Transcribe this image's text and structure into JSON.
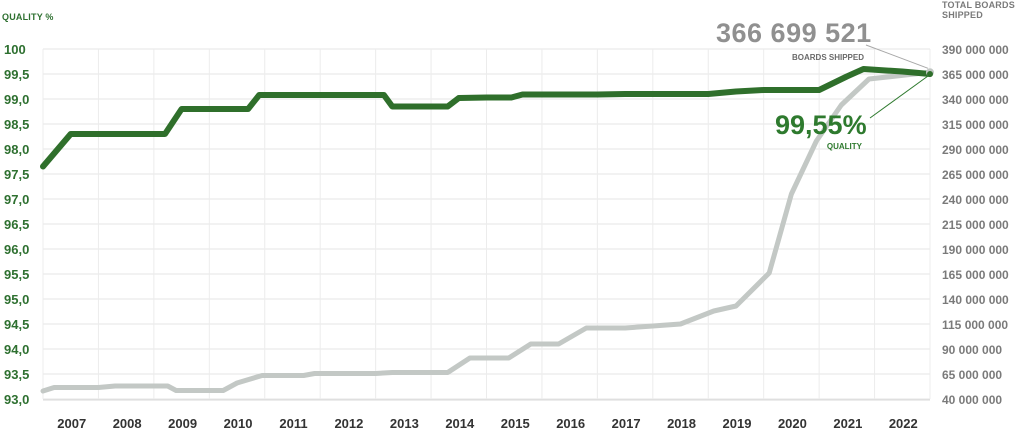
{
  "chart_data": {
    "type": "line",
    "left_axis_title": "QUALITY %",
    "right_axis_title": "TOTAL BOARDS SHIPPED",
    "x_labels": [
      "2007",
      "2008",
      "2009",
      "2010",
      "2011",
      "2012",
      "2013",
      "2014",
      "2015",
      "2016",
      "2017",
      "2018",
      "2019",
      "2020",
      "2021",
      "2022"
    ],
    "left_ticks": [
      "100",
      "99,5",
      "99,0",
      "98,5",
      "98,0",
      "97,5",
      "97,0",
      "96,5",
      "96,0",
      "95,5",
      "95,0",
      "94,5",
      "94,0",
      "93,5",
      "93,0"
    ],
    "left_tick_values": [
      100,
      99.5,
      99,
      98.5,
      98,
      97.5,
      97,
      96.5,
      96,
      95.5,
      95,
      94.5,
      94,
      93.5,
      93
    ],
    "right_ticks": [
      "390 000 000",
      "365 000 000",
      "340 000 000",
      "315 000 000",
      "290 000 000",
      "265 000 000",
      "240 000 000",
      "215 000 000",
      "190 000 000",
      "165 000 000",
      "140 000 000",
      "115 000 000",
      "90 000 000",
      "65 000 000",
      "40 000 000"
    ],
    "right_tick_values": [
      390000000,
      365000000,
      340000000,
      315000000,
      290000000,
      265000000,
      240000000,
      215000000,
      190000000,
      165000000,
      140000000,
      115000000,
      90000000,
      65000000,
      40000000
    ],
    "ylim_left": [
      93,
      100
    ],
    "ylim_right": [
      40000000,
      390000000
    ],
    "grid": true,
    "series": [
      {
        "axis": "left",
        "color": "#2f6f2b",
        "points": [
          [
            2006.5,
            97.65
          ],
          [
            2007.0,
            98.3
          ],
          [
            2007.5,
            98.3
          ],
          [
            2008.0,
            98.3
          ],
          [
            2008.5,
            98.3
          ],
          [
            2008.7,
            98.3
          ],
          [
            2009.0,
            98.8
          ],
          [
            2009.5,
            98.8
          ],
          [
            2010.0,
            98.8
          ],
          [
            2010.2,
            98.8
          ],
          [
            2010.4,
            99.08
          ],
          [
            2011.0,
            99.08
          ],
          [
            2011.5,
            99.08
          ],
          [
            2012.0,
            99.08
          ],
          [
            2012.5,
            99.08
          ],
          [
            2012.65,
            99.08
          ],
          [
            2012.8,
            98.85
          ],
          [
            2013.5,
            98.85
          ],
          [
            2013.8,
            98.85
          ],
          [
            2014.0,
            99.02
          ],
          [
            2014.5,
            99.03
          ],
          [
            2014.95,
            99.03
          ],
          [
            2015.15,
            99.09
          ],
          [
            2016.0,
            99.09
          ],
          [
            2016.5,
            99.09
          ],
          [
            2017.0,
            99.1
          ],
          [
            2018.0,
            99.1
          ],
          [
            2018.5,
            99.1
          ],
          [
            2019.0,
            99.15
          ],
          [
            2019.5,
            99.18
          ],
          [
            2020.0,
            99.18
          ],
          [
            2020.5,
            99.18
          ],
          [
            2021.0,
            99.45
          ],
          [
            2021.3,
            99.6
          ],
          [
            2022.0,
            99.55
          ],
          [
            2022.5,
            99.5
          ]
        ]
      },
      {
        "axis": "right",
        "color": "#c3c8c5",
        "points": [
          [
            2006.5,
            48000000
          ],
          [
            2006.7,
            51500000
          ],
          [
            2007.0,
            51500000
          ],
          [
            2007.5,
            51500000
          ],
          [
            2007.8,
            53000000
          ],
          [
            2008.5,
            53000000
          ],
          [
            2008.75,
            53000000
          ],
          [
            2008.9,
            48500000
          ],
          [
            2009.5,
            48500000
          ],
          [
            2009.75,
            48500000
          ],
          [
            2010.0,
            56000000
          ],
          [
            2010.45,
            63500000
          ],
          [
            2011.0,
            63500000
          ],
          [
            2011.2,
            63500000
          ],
          [
            2011.4,
            65500000
          ],
          [
            2012.0,
            65500000
          ],
          [
            2012.5,
            65500000
          ],
          [
            2012.8,
            66500000
          ],
          [
            2013.5,
            66500000
          ],
          [
            2013.8,
            66500000
          ],
          [
            2014.2,
            81000000
          ],
          [
            2014.5,
            81000000
          ],
          [
            2014.9,
            81000000
          ],
          [
            2015.3,
            95000000
          ],
          [
            2015.8,
            95000000
          ],
          [
            2016.3,
            111000000
          ],
          [
            2016.5,
            111000000
          ],
          [
            2017.0,
            111000000
          ],
          [
            2017.5,
            113000000
          ],
          [
            2018.0,
            115000000
          ],
          [
            2018.6,
            128000000
          ],
          [
            2019.0,
            133000000
          ],
          [
            2019.6,
            166000000
          ],
          [
            2020.0,
            245000000
          ],
          [
            2020.45,
            298000000
          ],
          [
            2020.9,
            334000000
          ],
          [
            2021.4,
            360000000
          ],
          [
            2022.5,
            366699521
          ]
        ]
      }
    ],
    "annotations": {
      "boards_value": "366 699 521",
      "boards_label": "BOARDS SHIPPED",
      "quality_value": "99,55%",
      "quality_label": "QUALITY"
    }
  }
}
